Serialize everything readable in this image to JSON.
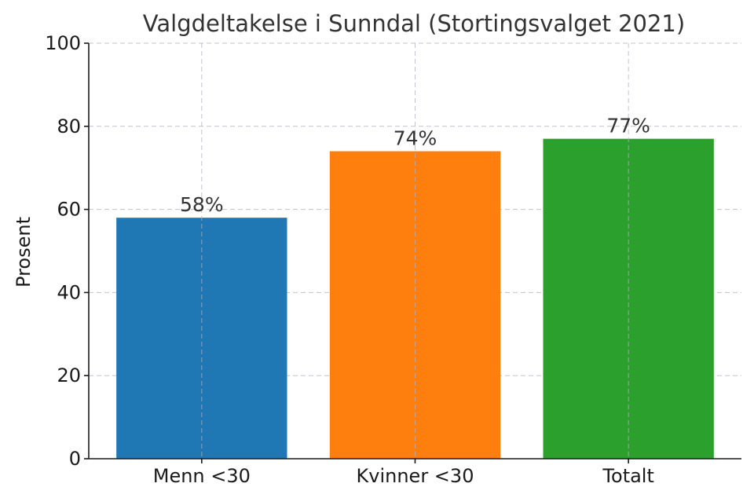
{
  "chart_data": {
    "type": "bar",
    "title": "Valgdeltakelse i Sunndal (Stortingsvalget 2021)",
    "xlabel": "",
    "ylabel": "Prosent",
    "categories": [
      "Menn <30",
      "Kvinner <30",
      "Totalt"
    ],
    "values": [
      58,
      74,
      77
    ],
    "data_labels": [
      "58%",
      "74%",
      "77%"
    ],
    "colors": [
      "#1f77b4",
      "#ff7f0e",
      "#2ca02c"
    ],
    "ylim": [
      0,
      100
    ],
    "yticks": [
      0,
      20,
      40,
      60,
      80,
      100
    ],
    "ytick_labels": [
      "0",
      "20",
      "40",
      "60",
      "80",
      "100"
    ],
    "grid": true,
    "legend": "none"
  }
}
